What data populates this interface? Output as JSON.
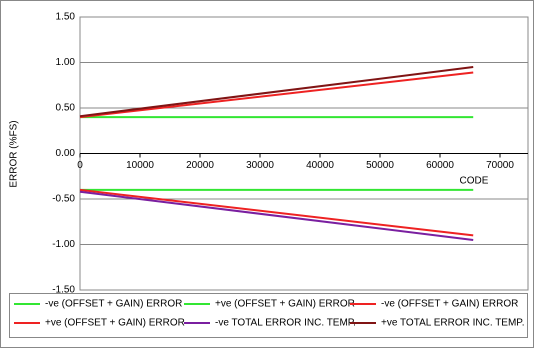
{
  "chart_data": {
    "type": "line",
    "y_label": "ERROR (%FS)",
    "x_label": "CODE",
    "x": [
      0,
      65535
    ],
    "xlim": [
      0,
      70000
    ],
    "xticks": [
      0,
      10000,
      20000,
      30000,
      40000,
      50000,
      60000,
      70000
    ],
    "ylim": [
      -1.5,
      1.5
    ],
    "yticks": [
      {
        "value": 1.5,
        "label": "1.50"
      },
      {
        "value": 1,
        "label": "1.00"
      },
      {
        "value": 0.5,
        "label": "0.50"
      },
      {
        "value": 0,
        "label": "0.00"
      },
      {
        "value": -0.5,
        "label": "-0.50"
      },
      {
        "value": -1,
        "label": "-1.00"
      },
      {
        "value": -1.5,
        "label": "-1.50"
      }
    ],
    "grid": true,
    "series": [
      {
        "name": "-ve (OFFSET + GAIN) ERROR",
        "color": "#33e633",
        "values": [
          -0.4,
          -0.4
        ]
      },
      {
        "name": "+ve (OFFSET + GAIN) ERROR",
        "color": "#33e633",
        "values": [
          0.4,
          0.4
        ]
      },
      {
        "name": "-ve (OFFSET + GAIN) ERROR",
        "color": "#ee2222",
        "values": [
          -0.4,
          -0.9
        ]
      },
      {
        "name": "+ve (OFFSET + GAIN) ERROR",
        "color": "#ee2222",
        "values": [
          0.4,
          0.89
        ]
      },
      {
        "name": "-ve TOTAL ERROR INC. TEMP.",
        "color": "#7a1fa0",
        "values": [
          -0.42,
          -0.95
        ]
      },
      {
        "name": "+ve TOTAL ERROR INC. TEMP.",
        "color": "#801414",
        "values": [
          0.41,
          0.95
        ]
      }
    ]
  }
}
